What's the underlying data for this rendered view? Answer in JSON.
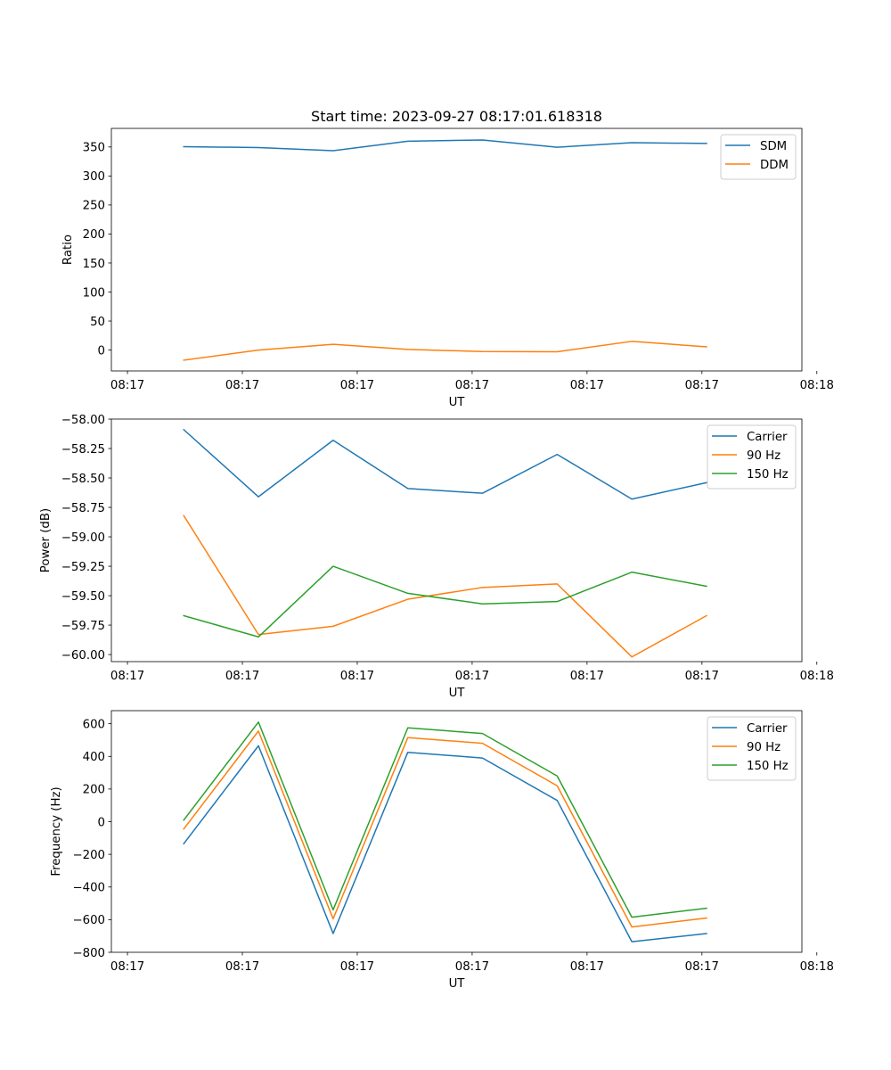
{
  "title": "Start time: 2023-09-27 08:17:01.618318",
  "colors": {
    "blue": "#1f77b4",
    "orange": "#ff7f0e",
    "green": "#2ca02c"
  },
  "chart_data": [
    {
      "type": "line",
      "xlabel": "UT",
      "ylabel": "Ratio",
      "x_tick_labels": [
        "08:17",
        "08:17",
        "08:17",
        "08:17",
        "08:17",
        "08:17",
        "08:18"
      ],
      "x_tick_positions": [
        0,
        1,
        2,
        3,
        4,
        5,
        6
      ],
      "x": [
        0.49,
        1.14,
        1.79,
        2.44,
        3.09,
        3.74,
        4.39,
        5.04
      ],
      "xlim": [
        -0.14,
        5.87
      ],
      "yticks": [
        0,
        50,
        100,
        150,
        200,
        250,
        300,
        350
      ],
      "ylim": [
        -36,
        382
      ],
      "legend_position": "top-right",
      "series": [
        {
          "name": "SDM",
          "color": "#1f77b4",
          "values": [
            350.5,
            349,
            343.5,
            360,
            362,
            349.5,
            357.5,
            356
          ]
        },
        {
          "name": "DDM",
          "color": "#ff7f0e",
          "values": [
            -17.5,
            0,
            10,
            1,
            -2.5,
            -3,
            15,
            5.5
          ]
        }
      ]
    },
    {
      "type": "line",
      "xlabel": "UT",
      "ylabel": "Power (dB)",
      "x_tick_labels": [
        "08:17",
        "08:17",
        "08:17",
        "08:17",
        "08:17",
        "08:17",
        "08:18"
      ],
      "x_tick_positions": [
        0,
        1,
        2,
        3,
        4,
        5,
        6
      ],
      "x": [
        0.49,
        1.14,
        1.79,
        2.44,
        3.09,
        3.74,
        4.39,
        5.04
      ],
      "xlim": [
        -0.14,
        5.87
      ],
      "ytick_values": [
        -58.0,
        -58.25,
        -58.5,
        -58.75,
        -59.0,
        -59.25,
        -59.5,
        -59.75,
        -60.0
      ],
      "ytick_labels": [
        "−58.00",
        "−58.25",
        "−58.50",
        "−58.75",
        "−59.00",
        "−59.25",
        "−59.50",
        "−59.75",
        "−60.00"
      ],
      "ylim": [
        -60.06,
        -58.0
      ],
      "legend_position": "top-right",
      "series": [
        {
          "name": "Carrier",
          "color": "#1f77b4",
          "values": [
            -58.09,
            -58.66,
            -58.18,
            -58.59,
            -58.63,
            -58.3,
            -58.68,
            -58.54
          ]
        },
        {
          "name": "90 Hz",
          "color": "#ff7f0e",
          "values": [
            -58.82,
            -59.83,
            -59.76,
            -59.53,
            -59.43,
            -59.4,
            -60.02,
            -59.67
          ]
        },
        {
          "name": "150 Hz",
          "color": "#2ca02c",
          "values": [
            -59.67,
            -59.85,
            -59.25,
            -59.48,
            -59.57,
            -59.55,
            -59.3,
            -59.42
          ]
        }
      ]
    },
    {
      "type": "line",
      "xlabel": "UT",
      "ylabel": "Frequency (Hz)",
      "x_tick_labels": [
        "08:17",
        "08:17",
        "08:17",
        "08:17",
        "08:17",
        "08:17",
        "08:18"
      ],
      "x_tick_positions": [
        0,
        1,
        2,
        3,
        4,
        5,
        6
      ],
      "x": [
        0.49,
        1.14,
        1.79,
        2.44,
        3.09,
        3.74,
        4.39,
        5.04
      ],
      "xlim": [
        -0.14,
        5.87
      ],
      "ytick_values": [
        600,
        400,
        200,
        0,
        -200,
        -400,
        -600,
        -800
      ],
      "ytick_labels": [
        "600",
        "400",
        "200",
        "0",
        "−200",
        "−400",
        "−600",
        "−800"
      ],
      "ylim": [
        -800,
        680
      ],
      "legend_position": "top-right",
      "series": [
        {
          "name": "Carrier",
          "color": "#1f77b4",
          "values": [
            -135,
            465,
            -685,
            425,
            390,
            130,
            -735,
            -685
          ]
        },
        {
          "name": "90 Hz",
          "color": "#ff7f0e",
          "values": [
            -45,
            555,
            -595,
            515,
            480,
            220,
            -645,
            -590
          ]
        },
        {
          "name": "150 Hz",
          "color": "#2ca02c",
          "values": [
            10,
            610,
            -540,
            575,
            540,
            280,
            -585,
            -530
          ]
        }
      ]
    }
  ]
}
